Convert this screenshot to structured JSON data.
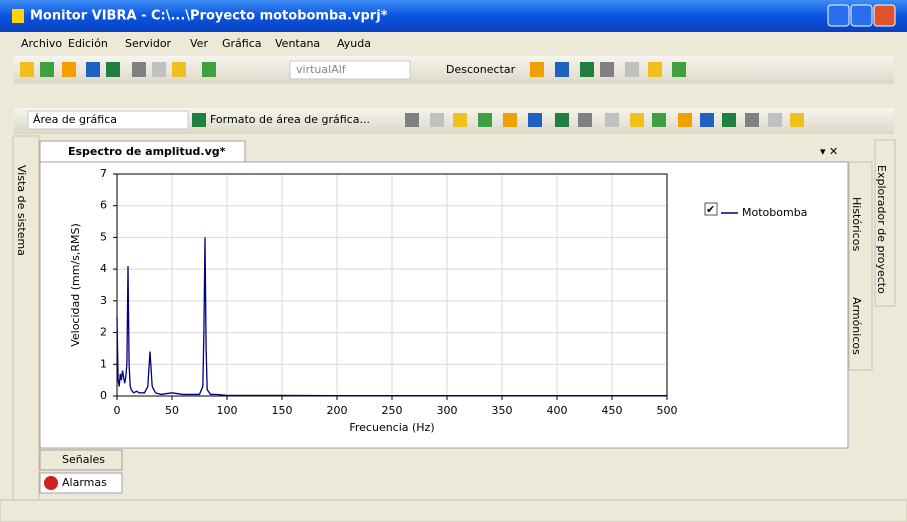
{
  "window": {
    "title": "Monitor VIBRA - C:\\...\\Proyecto motobomba.vprj*"
  },
  "menu": [
    "Archivo",
    "Edición",
    "Servidor",
    "Ver",
    "Gráfica",
    "Ventana",
    "Ayuda"
  ],
  "toolbar": {
    "server": "virtualAlf",
    "disconnect": "Desconectar",
    "area": "Área de gráfica",
    "format": "Formato de área de gráfica..."
  },
  "document_tab": "Espectro de amplitud.vg*",
  "left_panel": "Vista de sistema",
  "right_panels": [
    "Históricos",
    "Armónicos"
  ],
  "far_right_panel": "Explorador de proyecto",
  "bottom_tabs": [
    "Señales",
    "Alarmas"
  ],
  "chart_data": {
    "type": "line",
    "xlabel": "Frecuencia (Hz)",
    "ylabel": "Velocidad (mm/s,RMS)",
    "x": [
      0,
      1,
      2,
      3,
      4,
      5,
      6,
      7,
      8,
      9,
      10,
      11,
      12,
      13,
      15,
      18,
      20,
      25,
      28,
      30,
      32,
      35,
      40,
      50,
      60,
      70,
      75,
      78,
      79,
      80,
      81,
      82,
      85,
      90,
      100,
      150,
      200,
      300,
      400,
      500
    ],
    "series": [
      {
        "name": "Motobomba",
        "color": "#000080",
        "values": [
          2.5,
          0.5,
          0.3,
          0.7,
          0.5,
          0.8,
          0.6,
          0.4,
          0.6,
          1.0,
          4.1,
          1.0,
          0.3,
          0.2,
          0.1,
          0.15,
          0.1,
          0.1,
          0.3,
          1.4,
          0.3,
          0.1,
          0.05,
          0.1,
          0.05,
          0.05,
          0.05,
          0.3,
          2.0,
          5.0,
          1.5,
          0.2,
          0.05,
          0.05,
          0.02,
          0.02,
          0.01,
          0.01,
          0.01,
          0.01
        ]
      }
    ],
    "xlim": [
      0,
      500
    ],
    "xticks": [
      0,
      50,
      100,
      150,
      200,
      250,
      300,
      350,
      400,
      450,
      500
    ],
    "ylim": [
      0,
      7
    ],
    "yticks": [
      0,
      1,
      2,
      3,
      4,
      5,
      6,
      7
    ],
    "grid": true,
    "legend": "right"
  }
}
